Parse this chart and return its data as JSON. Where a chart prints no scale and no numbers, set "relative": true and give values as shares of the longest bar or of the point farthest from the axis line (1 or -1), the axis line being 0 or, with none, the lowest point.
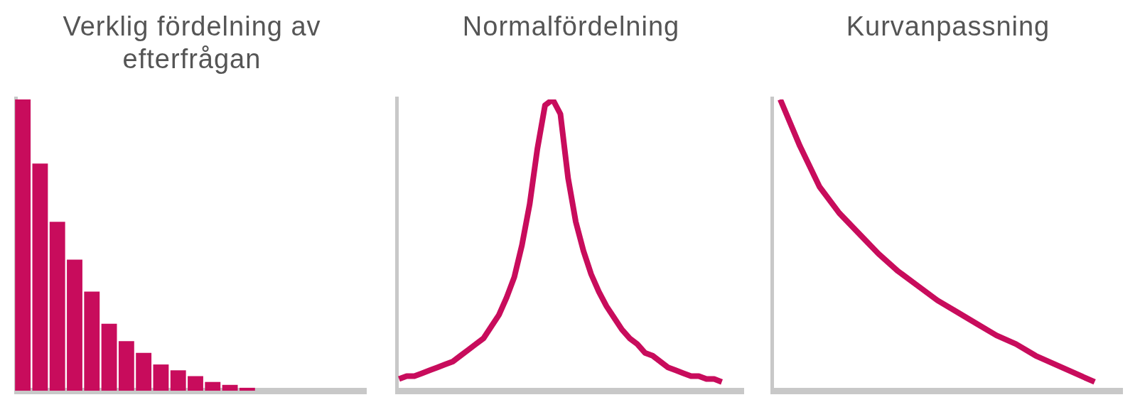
{
  "chart_data": [
    {
      "type": "bar",
      "title": "Verklig fördelning av efterfrågan",
      "relative": true,
      "color": "#c80c5c",
      "categories": [
        null,
        null,
        null,
        null,
        null,
        null,
        null,
        null,
        null,
        null,
        null,
        null,
        null,
        null
      ],
      "values": [
        1,
        0.78,
        0.58,
        0.45,
        0.34,
        0.23,
        0.17,
        0.13,
        0.09,
        0.07,
        0.05,
        0.03,
        0.02,
        0.01
      ]
    },
    {
      "type": "line",
      "title": "Normalfördelning",
      "relative": true,
      "color": "#c80c5c",
      "marker": "none",
      "line_style": "solid",
      "categories": [
        null,
        null,
        null,
        null,
        null,
        null,
        null,
        null,
        null,
        null,
        null,
        null,
        null,
        null,
        null,
        null,
        null,
        null,
        null,
        null,
        null,
        null,
        null,
        null,
        null,
        null,
        null,
        null,
        null,
        null,
        null,
        null,
        null,
        null,
        null,
        null,
        null,
        null,
        null,
        null,
        null,
        null,
        null
      ],
      "values": [
        0.04,
        0.05,
        0.05,
        0.06,
        0.07,
        0.08,
        0.09,
        0.1,
        0.12,
        0.14,
        0.16,
        0.18,
        0.22,
        0.26,
        0.32,
        0.39,
        0.5,
        0.64,
        0.83,
        0.98,
        1,
        0.95,
        0.73,
        0.58,
        0.48,
        0.4,
        0.34,
        0.29,
        0.25,
        0.21,
        0.18,
        0.16,
        0.13,
        0.12,
        0.1,
        0.08,
        0.07,
        0.06,
        0.05,
        0.05,
        0.04,
        0.04,
        0.03
      ]
    },
    {
      "type": "line",
      "title": "Kurvanpassning",
      "relative": true,
      "color": "#c80c5c",
      "marker": "none",
      "line_style": "solid",
      "categories": [
        null,
        null,
        null,
        null,
        null,
        null,
        null,
        null,
        null,
        null,
        null,
        null,
        null,
        null,
        null,
        null,
        null
      ],
      "values": [
        1,
        0.84,
        0.7,
        0.61,
        0.54,
        0.47,
        0.41,
        0.36,
        0.31,
        0.27,
        0.23,
        0.19,
        0.16,
        0.12,
        0.09,
        0.06,
        0.03
      ]
    }
  ]
}
